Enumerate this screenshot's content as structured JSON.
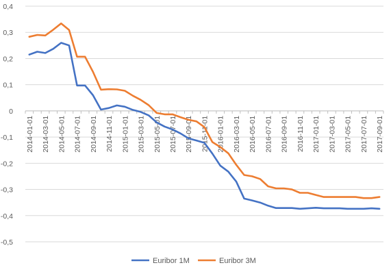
{
  "chart_data": {
    "type": "line",
    "title": "",
    "xlabel": "",
    "ylabel": "",
    "ylim": [
      -0.5,
      0.4
    ],
    "y_ticks": [
      0.4,
      0.3,
      0.2,
      0.1,
      0,
      -0.1,
      -0.2,
      -0.3,
      -0.4,
      -0.5
    ],
    "y_tick_labels": [
      "0,4",
      "0,3",
      "0,2",
      "0,1",
      "0",
      "-0,1",
      "-0,2",
      "-0,3",
      "-0,4",
      "-0,5"
    ],
    "x": [
      "2014-01-01",
      "2014-02-01",
      "2014-03-01",
      "2014-04-01",
      "2014-05-01",
      "2014-06-01",
      "2014-07-01",
      "2014-08-01",
      "2014-09-01",
      "2014-10-01",
      "2014-11-01",
      "2014-12-01",
      "2015-01-01",
      "2015-02-01",
      "2015-03-01",
      "2015-04-01",
      "2015-05-01",
      "2015-06-01",
      "2015-07-01",
      "2015-08-01",
      "2015-09-01",
      "2015-10-01",
      "2015-11-01",
      "2015-12-01",
      "2016-01-01",
      "2016-02-01",
      "2016-03-01",
      "2016-04-01",
      "2016-05-01",
      "2016-06-01",
      "2016-07-01",
      "2016-08-01",
      "2016-09-01",
      "2016-10-01",
      "2016-11-01",
      "2016-12-01",
      "2017-01-01",
      "2017-02-01",
      "2017-03-01",
      "2017-04-01",
      "2017-05-01",
      "2017-06-01",
      "2017-07-01",
      "2017-08-01",
      "2017-09-01"
    ],
    "x_tick_labels": [
      "2014-01-01",
      "2014-03-01",
      "2014-05-01",
      "2014-07-01",
      "2014-09-01",
      "2014-11-01",
      "2015-01-01",
      "2015-03-01",
      "2015-05-01",
      "2015-07-01",
      "2015-09-01",
      "2015-11-01",
      "2016-01-01",
      "2016-03-01",
      "2016-05-01",
      "2016-07-01",
      "2016-09-01",
      "2016-11-01",
      "2017-01-01",
      "2017-03-01",
      "2017-05-01",
      "2017-07-01",
      "2017-09-01"
    ],
    "grid": true,
    "legend_position": "bottom",
    "series": [
      {
        "name": "Euribor 1M",
        "color": "#4472C4",
        "values": [
          0.215,
          0.226,
          0.221,
          0.237,
          0.26,
          0.25,
          0.097,
          0.097,
          0.06,
          0.005,
          0.011,
          0.021,
          0.016,
          0.004,
          -0.004,
          -0.017,
          -0.044,
          -0.06,
          -0.071,
          -0.086,
          -0.105,
          -0.113,
          -0.122,
          -0.163,
          -0.209,
          -0.232,
          -0.27,
          -0.335,
          -0.342,
          -0.35,
          -0.362,
          -0.371,
          -0.371,
          -0.371,
          -0.374,
          -0.372,
          -0.37,
          -0.372,
          -0.372,
          -0.372,
          -0.374,
          -0.374,
          -0.374,
          -0.372,
          -0.374
        ]
      },
      {
        "name": "Euribor 3M",
        "color": "#ED7D31",
        "values": [
          0.283,
          0.29,
          0.288,
          0.31,
          0.334,
          0.309,
          0.207,
          0.207,
          0.149,
          0.081,
          0.083,
          0.082,
          0.077,
          0.058,
          0.042,
          0.022,
          -0.008,
          -0.013,
          -0.013,
          -0.024,
          -0.034,
          -0.04,
          -0.062,
          -0.119,
          -0.138,
          -0.162,
          -0.206,
          -0.245,
          -0.25,
          -0.26,
          -0.288,
          -0.296,
          -0.296,
          -0.3,
          -0.313,
          -0.313,
          -0.321,
          -0.329,
          -0.329,
          -0.329,
          -0.329,
          -0.329,
          -0.333,
          -0.333,
          -0.329
        ]
      }
    ]
  }
}
